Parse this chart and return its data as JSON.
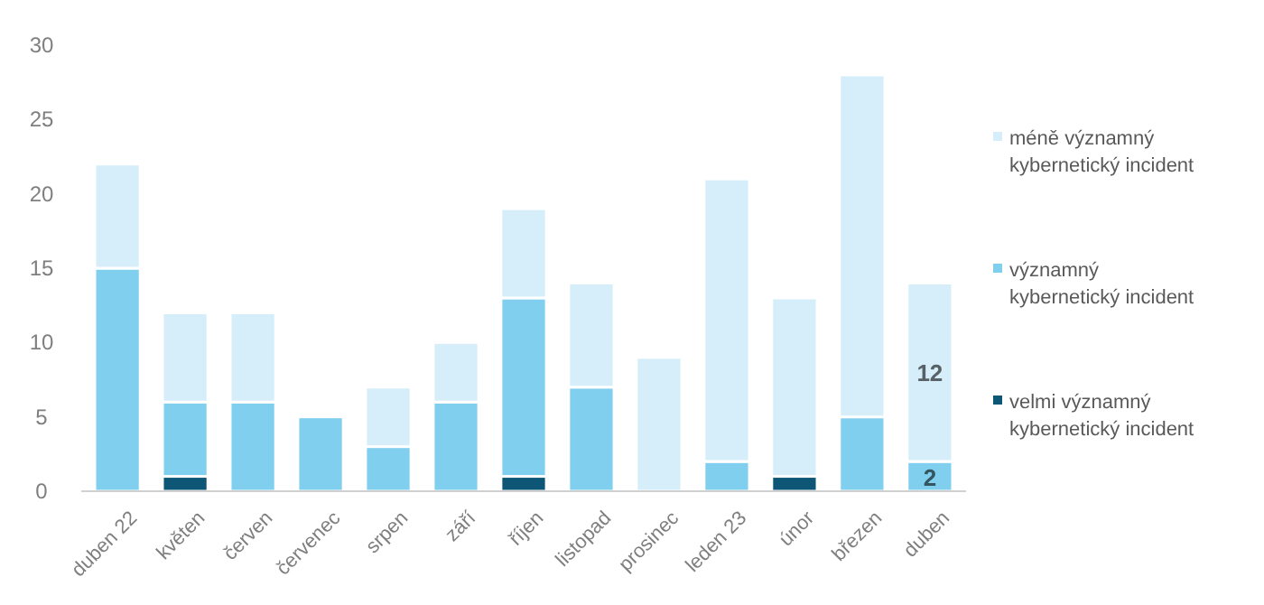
{
  "chart_data": {
    "type": "bar",
    "stacked": true,
    "categories": [
      "duben 22",
      "květen",
      "červen",
      "červenec",
      "srpen",
      "září",
      "říjen",
      "listopad",
      "prosinec",
      "leden 23",
      "únor",
      "březen",
      "duben"
    ],
    "series": [
      {
        "name": "velmi významný kybernetický incident",
        "color": "#0d5675",
        "values": [
          0,
          1,
          0,
          0,
          0,
          0,
          1,
          0,
          0,
          0,
          1,
          0,
          0
        ],
        "value_labels": [
          null,
          null,
          null,
          null,
          null,
          null,
          null,
          null,
          null,
          null,
          null,
          null,
          null
        ]
      },
      {
        "name": "významný kybernetický incident",
        "color": "#80cfee",
        "values": [
          15,
          5,
          6,
          5,
          3,
          6,
          12,
          7,
          0,
          2,
          0,
          5,
          2
        ],
        "value_labels": [
          null,
          null,
          null,
          null,
          null,
          null,
          null,
          null,
          null,
          null,
          null,
          null,
          "2"
        ]
      },
      {
        "name": "méně významný kybernetický incident",
        "color": "#d6eef9",
        "values": [
          7,
          6,
          6,
          0,
          4,
          4,
          6,
          7,
          9,
          19,
          12,
          23,
          12
        ],
        "value_labels": [
          null,
          null,
          null,
          null,
          null,
          null,
          null,
          null,
          null,
          null,
          null,
          null,
          "12"
        ]
      }
    ],
    "ylim": [
      0,
      30
    ],
    "yticks": [
      0,
      5,
      10,
      15,
      20,
      25,
      30
    ],
    "grid": false,
    "legend": "right"
  }
}
